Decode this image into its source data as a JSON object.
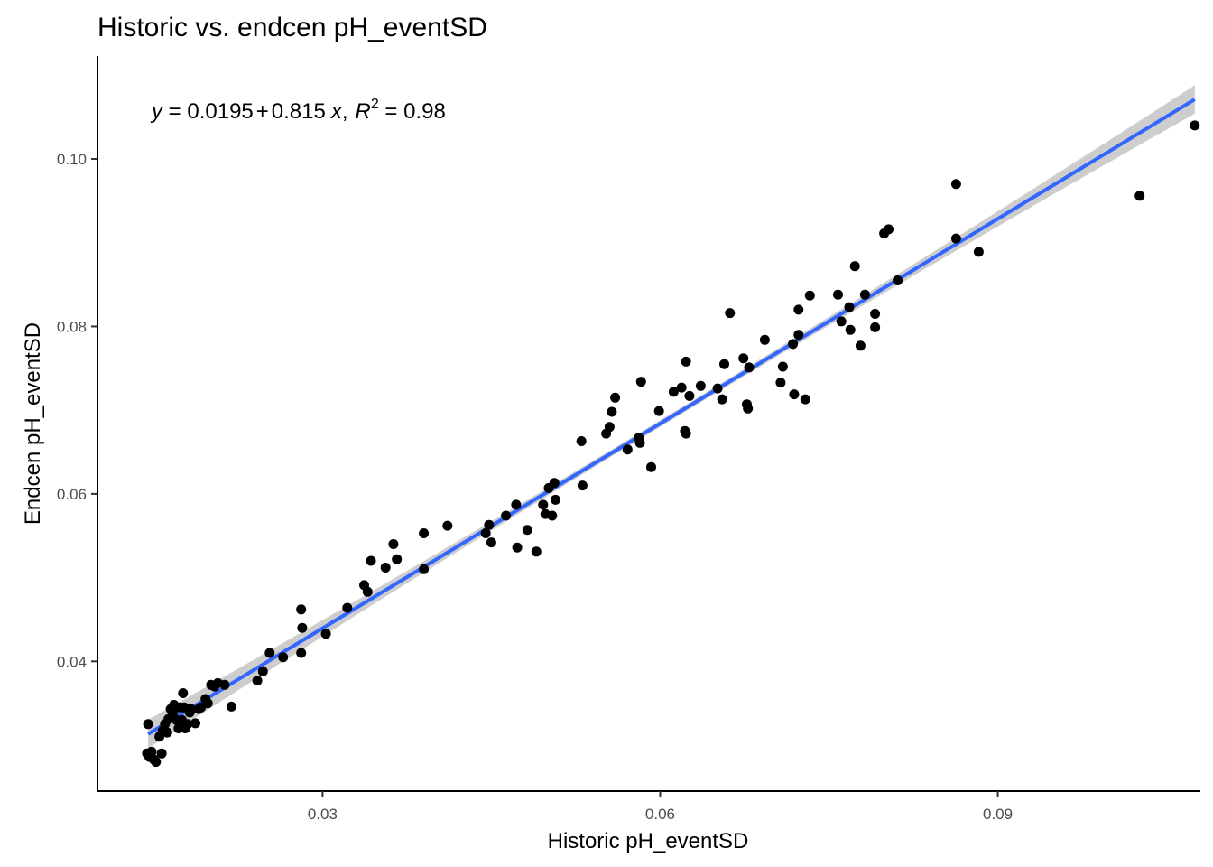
{
  "chart_data": {
    "type": "scatter",
    "title": "Historic vs. endcen pH_eventSD",
    "xlabel": "Historic pH_eventSD",
    "ylabel": "Endcen pH_eventSD",
    "xlim": [
      0.01,
      0.108
    ],
    "ylim": [
      0.0245,
      0.1123
    ],
    "x_ticks": [
      0.03,
      0.06,
      0.09
    ],
    "x_tick_labels": [
      "0.03",
      "0.06",
      "0.09"
    ],
    "y_ticks": [
      0.04,
      0.06,
      0.08,
      0.1
    ],
    "y_tick_labels": [
      "0.04",
      "0.06",
      "0.08",
      "0.10"
    ],
    "grid": false,
    "legend": "none",
    "annotation": {
      "y_var": "y",
      "eq_part1": " = 0.0195",
      "plus": "+",
      "eq_part2": "0.815",
      "x_var": "x",
      "comma": ",",
      "r_var": "R",
      "r_exp": "2",
      "r_value": " = 0.98"
    },
    "fit": {
      "intercept": 0.0195,
      "slope": 0.815,
      "x_range": [
        0.0145,
        0.1075
      ],
      "line_color": "#3366FF",
      "band_color": "#c8c8c8"
    },
    "point_color": "#000000",
    "points": [
      [
        0.0145,
        0.0325
      ],
      [
        0.0144,
        0.029
      ],
      [
        0.0146,
        0.0286
      ],
      [
        0.0148,
        0.0292
      ],
      [
        0.015,
        0.0283
      ],
      [
        0.0152,
        0.028
      ],
      [
        0.0155,
        0.031
      ],
      [
        0.0157,
        0.029
      ],
      [
        0.0158,
        0.0317
      ],
      [
        0.016,
        0.0325
      ],
      [
        0.0162,
        0.0315
      ],
      [
        0.0163,
        0.0331
      ],
      [
        0.0165,
        0.0343
      ],
      [
        0.0167,
        0.0338
      ],
      [
        0.0168,
        0.0348
      ],
      [
        0.017,
        0.033
      ],
      [
        0.0172,
        0.032
      ],
      [
        0.0173,
        0.0345
      ],
      [
        0.0175,
        0.033
      ],
      [
        0.0176,
        0.0362
      ],
      [
        0.0177,
        0.0345
      ],
      [
        0.0178,
        0.032
      ],
      [
        0.018,
        0.0325
      ],
      [
        0.0182,
        0.0339
      ],
      [
        0.0183,
        0.0343
      ],
      [
        0.0187,
        0.0326
      ],
      [
        0.019,
        0.0343
      ],
      [
        0.0192,
        0.0345
      ],
      [
        0.0196,
        0.0355
      ],
      [
        0.0198,
        0.035
      ],
      [
        0.0201,
        0.0372
      ],
      [
        0.0204,
        0.037
      ],
      [
        0.0207,
        0.0374
      ],
      [
        0.0213,
        0.0372
      ],
      [
        0.0219,
        0.0346
      ],
      [
        0.0242,
        0.0377
      ],
      [
        0.0247,
        0.0388
      ],
      [
        0.0253,
        0.041
      ],
      [
        0.0265,
        0.0405
      ],
      [
        0.0281,
        0.0462
      ],
      [
        0.0282,
        0.044
      ],
      [
        0.0281,
        0.041
      ],
      [
        0.0303,
        0.0433
      ],
      [
        0.0322,
        0.0464
      ],
      [
        0.0337,
        0.0491
      ],
      [
        0.034,
        0.0483
      ],
      [
        0.0343,
        0.052
      ],
      [
        0.0356,
        0.0512
      ],
      [
        0.0363,
        0.054
      ],
      [
        0.0366,
        0.0522
      ],
      [
        0.039,
        0.0553
      ],
      [
        0.039,
        0.051
      ],
      [
        0.0411,
        0.0562
      ],
      [
        0.0445,
        0.0553
      ],
      [
        0.0448,
        0.0563
      ],
      [
        0.045,
        0.0542
      ],
      [
        0.0463,
        0.0574
      ],
      [
        0.0472,
        0.0587
      ],
      [
        0.0473,
        0.0536
      ],
      [
        0.0482,
        0.0557
      ],
      [
        0.049,
        0.0531
      ],
      [
        0.0496,
        0.0587
      ],
      [
        0.0498,
        0.0576
      ],
      [
        0.0501,
        0.0607
      ],
      [
        0.0504,
        0.0574
      ],
      [
        0.0506,
        0.0613
      ],
      [
        0.0507,
        0.0593
      ],
      [
        0.053,
        0.0663
      ],
      [
        0.0531,
        0.061
      ],
      [
        0.0552,
        0.0672
      ],
      [
        0.0555,
        0.068
      ],
      [
        0.0557,
        0.0698
      ],
      [
        0.056,
        0.0715
      ],
      [
        0.0571,
        0.0653
      ],
      [
        0.0581,
        0.0667
      ],
      [
        0.0582,
        0.0661
      ],
      [
        0.0583,
        0.0734
      ],
      [
        0.0592,
        0.0632
      ],
      [
        0.0599,
        0.0699
      ],
      [
        0.0612,
        0.0722
      ],
      [
        0.0619,
        0.0727
      ],
      [
        0.0622,
        0.0675
      ],
      [
        0.0623,
        0.0758
      ],
      [
        0.0623,
        0.0672
      ],
      [
        0.0626,
        0.0717
      ],
      [
        0.0636,
        0.0729
      ],
      [
        0.0651,
        0.0726
      ],
      [
        0.0655,
        0.0713
      ],
      [
        0.0657,
        0.0755
      ],
      [
        0.0662,
        0.0816
      ],
      [
        0.0674,
        0.0762
      ],
      [
        0.0677,
        0.0707
      ],
      [
        0.0678,
        0.0702
      ],
      [
        0.0679,
        0.0751
      ],
      [
        0.0693,
        0.0784
      ],
      [
        0.0707,
        0.0733
      ],
      [
        0.0709,
        0.0752
      ],
      [
        0.0718,
        0.0779
      ],
      [
        0.0719,
        0.0719
      ],
      [
        0.0723,
        0.079
      ],
      [
        0.0723,
        0.082
      ],
      [
        0.0729,
        0.0713
      ],
      [
        0.0733,
        0.0837
      ],
      [
        0.0758,
        0.0838
      ],
      [
        0.0761,
        0.0806
      ],
      [
        0.0768,
        0.0823
      ],
      [
        0.0769,
        0.0796
      ],
      [
        0.0773,
        0.0872
      ],
      [
        0.0778,
        0.0777
      ],
      [
        0.0782,
        0.0838
      ],
      [
        0.0791,
        0.0815
      ],
      [
        0.0791,
        0.0799
      ],
      [
        0.0799,
        0.0911
      ],
      [
        0.0803,
        0.0916
      ],
      [
        0.0811,
        0.0855
      ],
      [
        0.0863,
        0.097
      ],
      [
        0.0863,
        0.0905
      ],
      [
        0.0883,
        0.0889
      ],
      [
        0.1026,
        0.0956
      ],
      [
        0.1075,
        0.104
      ]
    ]
  }
}
